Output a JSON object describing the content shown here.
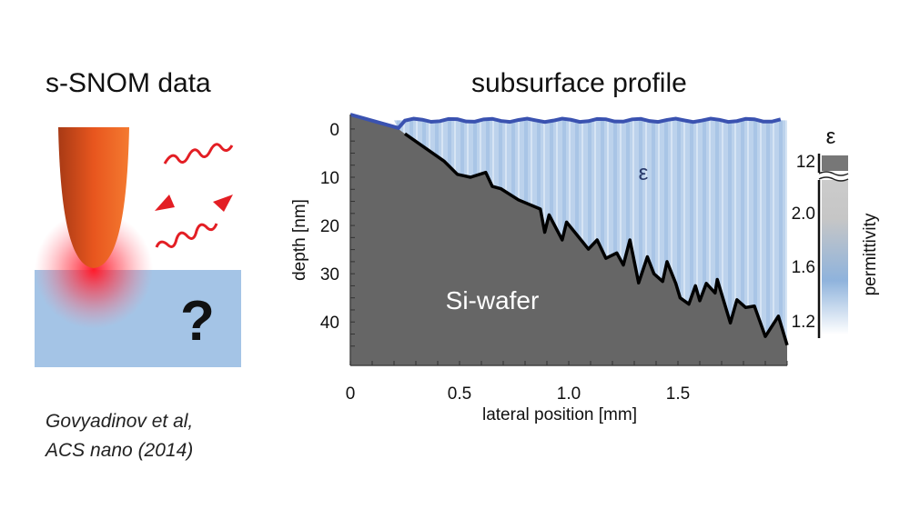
{
  "left_panel": {
    "title": "s-SNOM data",
    "question_mark": "?",
    "citation_line1": "Govyadinov et al,",
    "citation_line2": "ACS nano (2014)"
  },
  "chart_data": {
    "type": "area",
    "title": "subsurface profile",
    "xlabel": "lateral position [mm]",
    "ylabel": "depth [nm]",
    "xlim": [
      0,
      2.0
    ],
    "ylim": [
      -3,
      49
    ],
    "y_inverted": true,
    "grid": false,
    "x_ticks": [
      "0",
      "0.5",
      "1.0",
      "1.5"
    ],
    "y_ticks": [
      "0",
      "10",
      "20",
      "30",
      "40"
    ],
    "annotations": {
      "substrate": "Si-wafer",
      "layer": "ε"
    },
    "surface_depth": -1.8,
    "series": [
      {
        "name": "Si-wafer",
        "x": [
          0.25,
          0.43,
          0.49,
          0.55,
          0.62,
          0.65,
          0.69,
          0.77,
          0.87,
          0.89,
          0.91,
          0.97,
          0.99,
          1.09,
          1.13,
          1.17,
          1.22,
          1.25,
          1.28,
          1.32,
          1.36,
          1.39,
          1.43,
          1.45,
          1.49,
          1.51,
          1.55,
          1.58,
          1.6,
          1.63,
          1.67,
          1.68,
          1.74,
          1.77,
          1.81,
          1.85,
          1.9,
          1.96,
          2.0
        ],
        "y": [
          1,
          6.7,
          9.4,
          10,
          9,
          11.9,
          12.4,
          14.7,
          16.6,
          21.4,
          17.8,
          23,
          19.3,
          24.9,
          23,
          26.8,
          25.7,
          28.2,
          23,
          31.9,
          26.5,
          30,
          31.6,
          27.5,
          32,
          35,
          36.3,
          32.5,
          35.6,
          32,
          34,
          31.2,
          40.2,
          35.4,
          37,
          36.7,
          43,
          38.8,
          44.8
        ]
      }
    ],
    "colorbar": {
      "label": "permittivity",
      "symbol": "ε",
      "ticks": [
        "12",
        "2.0",
        "1.6",
        "1.2"
      ],
      "colors": {
        "low": "#ffffff",
        "mid": "#8fb3dc",
        "high": "#c8c8c8",
        "substrate": "#6a6a6a"
      }
    },
    "colors": {
      "substrate": "#666666",
      "surface_line": "#3a52b0",
      "interface_line": "#000000",
      "layer": "#b9d0ea"
    }
  }
}
